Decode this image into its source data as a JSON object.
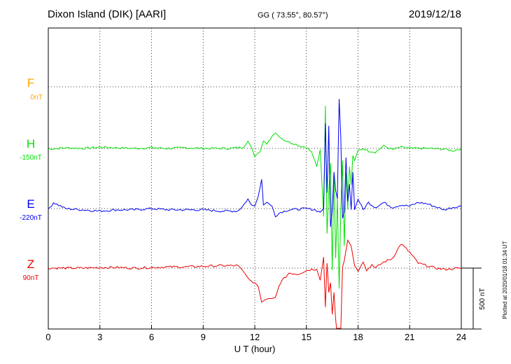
{
  "header": {
    "station": "Dixon Island (DIK)  [AARI]",
    "coords": "GG ( 73.55°,  80.57°)",
    "date": "2019/12/18"
  },
  "side_note": "Plotted at 2020/01/18 01:34 UT",
  "colors": {
    "F": "#ffa500",
    "H": "#00e000",
    "E": "#0000ee",
    "Z": "#ee0000"
  },
  "chart_data": {
    "type": "line",
    "title": "Dixon Island (DIK)  [AARI]",
    "xlabel": "U T (hour)",
    "xlim": [
      0,
      24
    ],
    "x_ticks": [
      "0",
      "3",
      "6",
      "9",
      "12",
      "15",
      "18",
      "21",
      "24"
    ],
    "grid": true,
    "scale_bar_label": "500 nT",
    "series": [
      {
        "name": "F",
        "offset_label": "0nT",
        "color": "#ffa500",
        "x": [],
        "y": []
      },
      {
        "name": "H",
        "offset_label": "-150nT",
        "color": "#00e000",
        "x": [
          0,
          0.5,
          1,
          2,
          3,
          4,
          5,
          6,
          7,
          8,
          9,
          10,
          10.5,
          11,
          11.3,
          11.6,
          11.8,
          12.0,
          12.3,
          12.5,
          12.7,
          13.0,
          13.2,
          13.5,
          13.8,
          14.0,
          14.3,
          14.6,
          15.0,
          15.3,
          15.6,
          15.8,
          16.0,
          16.1,
          16.2,
          16.3,
          16.4,
          16.5,
          16.6,
          16.7,
          16.8,
          16.9,
          17.0,
          17.1,
          17.2,
          17.3,
          17.4,
          17.5,
          17.6,
          17.7,
          17.8,
          18.0,
          18.3,
          18.6,
          19.0,
          19.5,
          20.0,
          20.5,
          21.0,
          22.0,
          23.0,
          23.5,
          24.0
        ],
        "y": [
          -5,
          0,
          5,
          0,
          10,
          5,
          0,
          5,
          0,
          5,
          0,
          0,
          0,
          5,
          10,
          60,
          10,
          -70,
          -30,
          60,
          40,
          100,
          130,
          90,
          60,
          50,
          40,
          20,
          10,
          -30,
          -150,
          -10,
          -560,
          350,
          -700,
          -350,
          -120,
          -1000,
          -200,
          -900,
          -400,
          -1150,
          -500,
          -100,
          -800,
          -200,
          -500,
          -150,
          -300,
          -60,
          -100,
          -20,
          0,
          -20,
          -30,
          20,
          -10,
          10,
          0,
          0,
          -5,
          -20,
          0
        ]
      },
      {
        "name": "E",
        "offset_label": "-220nT",
        "color": "#0000ee",
        "x": [
          0,
          0.3,
          1,
          2,
          3,
          4,
          5,
          6,
          7,
          8,
          9,
          10,
          11,
          11.3,
          11.6,
          11.8,
          12.0,
          12.2,
          12.4,
          12.5,
          12.7,
          13.0,
          13.2,
          13.5,
          14,
          15,
          15.5,
          15.8,
          16.0,
          16.1,
          16.2,
          16.3,
          16.4,
          16.5,
          16.6,
          16.7,
          16.8,
          16.9,
          17.0,
          17.1,
          17.2,
          17.3,
          17.4,
          17.5,
          17.6,
          17.7,
          17.8,
          18.0,
          18.3,
          18.6,
          19.0,
          19.5,
          20.0,
          20.5,
          21.0,
          21.5,
          22.0,
          23.0,
          23.5,
          24.0
        ],
        "y": [
          -10,
          50,
          0,
          -10,
          -20,
          -10,
          -10,
          0,
          -10,
          -10,
          -10,
          -20,
          -20,
          20,
          80,
          30,
          20,
          100,
          240,
          30,
          50,
          20,
          -60,
          -30,
          -10,
          0,
          -10,
          -30,
          0,
          700,
          130,
          680,
          -150,
          -10,
          300,
          150,
          80,
          900,
          580,
          -80,
          -20,
          420,
          60,
          200,
          -10,
          300,
          -10,
          80,
          -10,
          50,
          10,
          50,
          10,
          30,
          20,
          50,
          40,
          -10,
          10,
          20
        ]
      },
      {
        "name": "Z",
        "offset_label": "90nT",
        "color": "#ee0000",
        "x": [
          0,
          1,
          2,
          3,
          4,
          5,
          6,
          7,
          8,
          9,
          10,
          11,
          11.3,
          11.5,
          11.7,
          12.0,
          12.2,
          12.4,
          12.6,
          12.8,
          13.0,
          13.2,
          13.4,
          13.6,
          14,
          14.5,
          15,
          15.3,
          15.6,
          15.8,
          16.0,
          16.1,
          16.2,
          16.3,
          16.4,
          16.5,
          16.6,
          16.7,
          16.8,
          16.9,
          17.0,
          17.1,
          17.2,
          17.4,
          17.6,
          17.8,
          18.0,
          18.3,
          18.5,
          18.8,
          19.0,
          19.5,
          20.0,
          20.5,
          21.0,
          21.5,
          22.0,
          22.5,
          23.0,
          24.0
        ],
        "y": [
          0,
          0,
          0,
          5,
          5,
          0,
          5,
          10,
          10,
          15,
          20,
          20,
          -20,
          -60,
          -100,
          -120,
          -150,
          -280,
          -260,
          -250,
          -250,
          -240,
          -150,
          -100,
          -40,
          -50,
          -20,
          -10,
          -10,
          -100,
          90,
          -320,
          40,
          -200,
          -120,
          -380,
          -200,
          -420,
          -600,
          -800,
          -500,
          10,
          60,
          230,
          180,
          20,
          -20,
          50,
          -20,
          30,
          0,
          50,
          80,
          200,
          130,
          40,
          20,
          0,
          -10,
          0
        ]
      }
    ]
  }
}
